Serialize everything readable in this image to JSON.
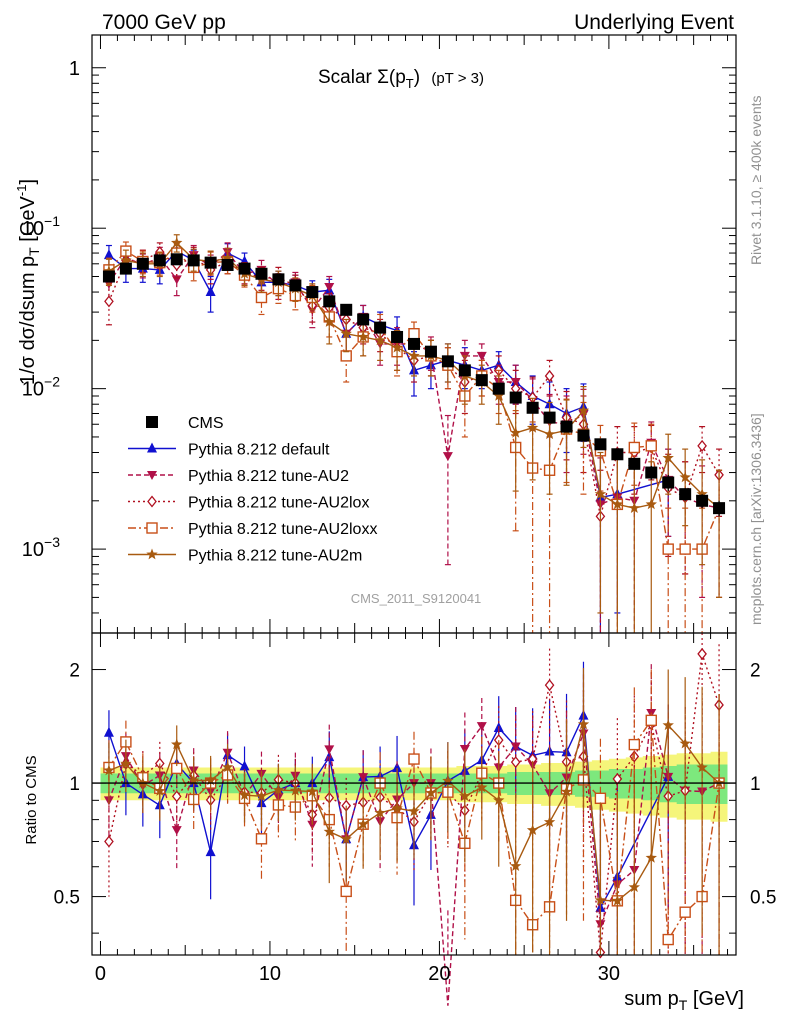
{
  "header": {
    "left": "7000 GeV pp",
    "right": "Underlying Event"
  },
  "side_text": {
    "rivet": "Rivet 3.1.10, ≥ 400k events",
    "mcplots": "mcplots.cern.ch [arXiv:1306.3436]"
  },
  "chart_data": [
    {
      "type": "scatter",
      "panel": "main",
      "title_main": "Scalar Σ(p",
      "title_sub": "T",
      "title_close": ")",
      "title_cut": "(pT >  3)",
      "ylabel": "1/σ dσ/dsum p",
      "ylabel_sub": "T",
      "ylabel_unit": " [GeV",
      "ylabel_sup": "-1",
      "ylabel_close": "]",
      "yscale": "log",
      "ylim": [
        0.0003,
        1.6
      ],
      "xlim": [
        -0.5,
        37.5
      ],
      "yticks": [
        {
          "v": 1,
          "base": "1",
          "exp": ""
        },
        {
          "v": 0.1,
          "base": "10",
          "exp": "−1"
        },
        {
          "v": 0.01,
          "base": "10",
          "exp": "−2"
        },
        {
          "v": 0.001,
          "base": "10",
          "exp": "−3"
        }
      ],
      "watermark": "CMS_2011_S9120041",
      "legend_position": "lower-left",
      "x": [
        0.5,
        1.5,
        2.5,
        3.5,
        4.5,
        5.5,
        6.5,
        7.5,
        8.5,
        9.5,
        10.5,
        11.5,
        12.5,
        13.5,
        14.5,
        15.5,
        16.5,
        17.5,
        18.5,
        19.5,
        20.5,
        21.5,
        22.5,
        23.5,
        24.5,
        25.5,
        26.5,
        27.5,
        28.5,
        29.5,
        30.5,
        31.5,
        32.5,
        33.5,
        34.5,
        35.5,
        36.5
      ],
      "series": [
        {
          "name": "CMS",
          "color": "#000000",
          "marker": "square-filled",
          "dash": "",
          "line": false,
          "values": [
            0.05,
            0.056,
            0.06,
            0.063,
            0.064,
            0.063,
            0.061,
            0.059,
            0.056,
            0.052,
            0.048,
            0.044,
            0.04,
            0.035,
            0.031,
            0.027,
            0.024,
            0.021,
            0.019,
            0.017,
            0.0148,
            0.013,
            0.0113,
            0.01,
            0.0088,
            0.0076,
            0.0066,
            0.0058,
            0.0051,
            0.0045,
            0.0039,
            0.0034,
            0.003,
            0.0026,
            0.0022,
            0.002,
            0.0018
          ],
          "errors": [
            0.0016,
            0.0016,
            0.0016,
            0.0016,
            0.0016,
            0.0016,
            0.0016,
            0.0015,
            0.0015,
            0.0014,
            0.0013,
            0.0012,
            0.0011,
            0.001,
            0.0009,
            0.0008,
            0.0007,
            0.0007,
            0.0006,
            0.0006,
            0.0006,
            0.0005,
            0.0005,
            0.0005,
            0.0004,
            0.0004,
            0.0004,
            0.0004,
            0.0004,
            0.0003,
            0.0003,
            0.0003,
            0.0003,
            0.0003,
            0.0002,
            0.0002,
            0.0002
          ]
        },
        {
          "name": "Pythia 8.212 default",
          "color": "#1010d0",
          "marker": "triangle-up",
          "dash": "",
          "line": true,
          "values": [
            0.068,
            0.056,
            0.056,
            0.055,
            0.072,
            0.063,
            0.04,
            0.07,
            0.062,
            0.046,
            0.046,
            0.044,
            0.04,
            0.041,
            0.022,
            0.028,
            0.025,
            0.023,
            0.013,
            0.014,
            0.015,
            0.014,
            0.013,
            0.014,
            0.011,
            0.009,
            0.008,
            0.007,
            0.0077,
            0.0021,
            0.0022,
            null,
            null,
            0.0027,
            null,
            null,
            null
          ],
          "errors": [
            0.01,
            0.01,
            0.01,
            0.01,
            0.01,
            0.01,
            0.01,
            0.01,
            0.008,
            0.008,
            0.008,
            0.007,
            0.007,
            0.007,
            0.005,
            0.005,
            0.005,
            0.005,
            0.004,
            0.004,
            0.004,
            0.004,
            0.003,
            0.003,
            0.003,
            0.003,
            0.003,
            0.003,
            0.003,
            0.0018,
            0.0018,
            null,
            null,
            0.0015,
            null,
            null,
            null
          ]
        },
        {
          "name": "Pythia 8.212 tune-AU2",
          "color": "#b01048",
          "marker": "triangle-down",
          "dash": "5,3",
          "line": true,
          "values": [
            0.045,
            0.066,
            0.059,
            0.066,
            0.048,
            0.068,
            0.058,
            0.071,
            0.052,
            0.055,
            0.044,
            0.046,
            0.031,
            0.043,
            0.022,
            0.028,
            0.019,
            0.019,
            0.019,
            0.017,
            0.0038,
            0.016,
            0.016,
            0.011,
            0.011,
            0.0085,
            0.0062,
            0.006,
            0.0069,
            0.0019,
            0.0021,
            0.002,
            0.0046,
            0.0027,
            0.0021,
            0.0019,
            0.0018
          ],
          "errors": [
            0.01,
            0.01,
            0.01,
            0.01,
            0.01,
            0.01,
            0.01,
            0.01,
            0.008,
            0.008,
            0.008,
            0.007,
            0.007,
            0.007,
            0.005,
            0.005,
            0.005,
            0.005,
            0.004,
            0.004,
            0.003,
            0.004,
            0.003,
            0.003,
            0.003,
            0.003,
            0.003,
            0.003,
            0.003,
            0.0018,
            0.0018,
            0.0018,
            0.0016,
            0.0015,
            0.0014,
            0.0014,
            0.0013
          ]
        },
        {
          "name": "Pythia 8.212 tune-AU2lox",
          "color": "#b01020",
          "marker": "diamond-open",
          "dash": "2,3",
          "line": true,
          "values": [
            0.035,
            0.063,
            0.063,
            0.071,
            0.059,
            0.066,
            0.055,
            0.062,
            0.053,
            0.049,
            0.049,
            0.044,
            0.033,
            0.032,
            0.027,
            0.024,
            0.022,
            0.018,
            0.015,
            0.016,
            0.014,
            0.011,
            0.012,
            0.013,
            0.01,
            0.0088,
            0.012,
            0.0066,
            0.006,
            0.0016,
            0.004,
            0.004,
            0.0043,
            0.0024,
            0.0021,
            0.0044,
            0.0029
          ],
          "errors": [
            0.01,
            0.01,
            0.01,
            0.01,
            0.01,
            0.01,
            0.01,
            0.01,
            0.008,
            0.008,
            0.008,
            0.007,
            0.007,
            0.007,
            0.005,
            0.005,
            0.005,
            0.005,
            0.004,
            0.004,
            0.004,
            0.004,
            0.003,
            0.003,
            0.003,
            0.003,
            0.003,
            0.003,
            0.003,
            0.0015,
            0.0018,
            0.0018,
            0.0016,
            0.0015,
            0.0014,
            0.0014,
            0.0013
          ]
        },
        {
          "name": "Pythia 8.212 tune-AU2loxx",
          "color": "#c84f18",
          "marker": "square-open",
          "dash": "8,3,2,3",
          "line": true,
          "values": [
            0.055,
            0.072,
            0.062,
            0.061,
            0.07,
            0.057,
            0.061,
            0.062,
            0.051,
            0.037,
            0.042,
            0.038,
            0.037,
            0.028,
            0.016,
            0.021,
            0.024,
            0.017,
            0.022,
            0.016,
            0.014,
            0.009,
            0.012,
            0.01,
            0.0043,
            0.0032,
            0.0031,
            0.0056,
            0.0052,
            0.0041,
            0.0019,
            0.0043,
            0.0044,
            0.001,
            0.001,
            0.001,
            0.0018
          ],
          "errors": [
            0.01,
            0.01,
            0.01,
            0.01,
            0.01,
            0.01,
            0.01,
            0.01,
            0.008,
            0.008,
            0.008,
            0.007,
            0.007,
            0.007,
            0.005,
            0.005,
            0.005,
            0.005,
            0.004,
            0.004,
            0.004,
            0.004,
            0.003,
            0.003,
            0.003,
            0.003,
            0.003,
            0.003,
            0.003,
            0.0018,
            0.0018,
            0.0018,
            0.0016,
            0.0008,
            0.0008,
            0.0008,
            0.0013
          ]
        },
        {
          "name": "Pythia 8.212 tune-AU2m",
          "color": "#a85a10",
          "marker": "star",
          "dash": "",
          "line": true,
          "values": [
            0.054,
            0.063,
            0.06,
            0.06,
            0.081,
            0.064,
            0.062,
            0.065,
            0.052,
            0.048,
            0.046,
            0.042,
            0.038,
            0.026,
            0.022,
            0.021,
            0.02,
            0.018,
            0.016,
            0.016,
            0.015,
            0.012,
            0.011,
            0.009,
            0.0053,
            0.0057,
            0.0052,
            0.0055,
            0.0073,
            0.0022,
            0.0019,
            0.0018,
            0.0019,
            0.0037,
            0.0028,
            0.0022,
            0.0018
          ],
          "errors": [
            0.01,
            0.01,
            0.01,
            0.01,
            0.01,
            0.01,
            0.01,
            0.01,
            0.008,
            0.008,
            0.008,
            0.007,
            0.007,
            0.007,
            0.005,
            0.005,
            0.005,
            0.005,
            0.004,
            0.004,
            0.004,
            0.004,
            0.003,
            0.003,
            0.003,
            0.003,
            0.003,
            0.003,
            0.003,
            0.0018,
            0.0018,
            0.0018,
            0.0016,
            0.0015,
            0.0014,
            0.0014,
            0.0013
          ]
        }
      ]
    },
    {
      "type": "scatter",
      "panel": "ratio",
      "ylabel": "Ratio to CMS",
      "xlabel": "sum p",
      "xlabel_sub": "T",
      "xlabel_unit": " [GeV]",
      "yscale": "log",
      "ylim": [
        0.35,
        2.5
      ],
      "yticks": [
        {
          "v": 0.5,
          "label": "0.5"
        },
        {
          "v": 1,
          "label": "1"
        },
        {
          "v": 2,
          "label": "2"
        }
      ],
      "xticks": [
        0,
        10,
        20,
        30
      ],
      "band_green": [
        0.06,
        0.06,
        0.06,
        0.06,
        0.06,
        0.06,
        0.06,
        0.06,
        0.06,
        0.06,
        0.06,
        0.06,
        0.06,
        0.06,
        0.06,
        0.06,
        0.06,
        0.06,
        0.06,
        0.06,
        0.06,
        0.06,
        0.06,
        0.06,
        0.07,
        0.07,
        0.07,
        0.07,
        0.08,
        0.08,
        0.09,
        0.09,
        0.1,
        0.11,
        0.12,
        0.12,
        0.12
      ],
      "band_yellow": [
        0.1,
        0.1,
        0.1,
        0.1,
        0.1,
        0.1,
        0.1,
        0.1,
        0.1,
        0.1,
        0.1,
        0.1,
        0.1,
        0.1,
        0.1,
        0.1,
        0.1,
        0.1,
        0.1,
        0.1,
        0.1,
        0.11,
        0.11,
        0.11,
        0.12,
        0.12,
        0.13,
        0.13,
        0.14,
        0.15,
        0.16,
        0.17,
        0.18,
        0.19,
        0.2,
        0.2,
        0.21
      ]
    }
  ]
}
